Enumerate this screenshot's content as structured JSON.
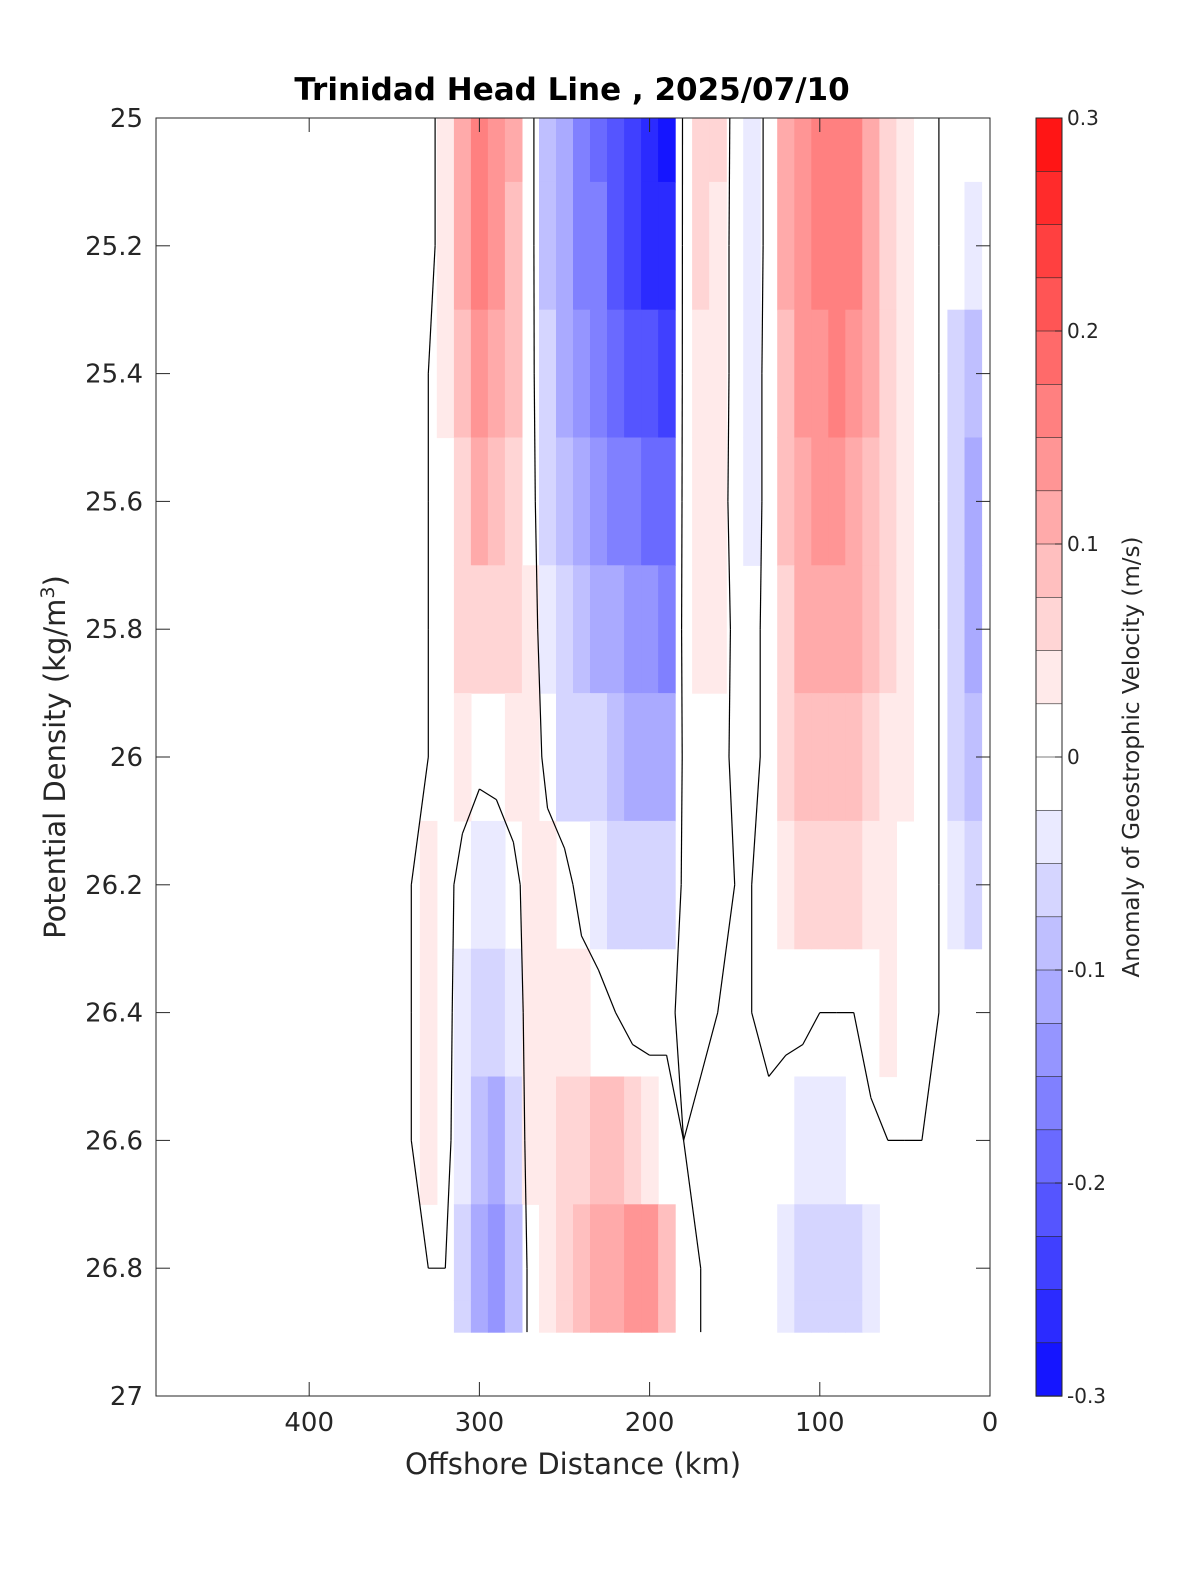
{
  "chart_data": {
    "type": "heatmap",
    "subtype": "filled-contour section",
    "title": "Trinidad Head Line , 2025/07/10",
    "xlabel": "Offshore Distance (km)",
    "ylabel": "Potential Density (kg/m",
    "ylabel_sup": "3",
    "ylabel_close": ")",
    "xlim": [
      490,
      0
    ],
    "x_reversed": true,
    "ylim": [
      25,
      27
    ],
    "y_reversed": true,
    "xticks": [
      400,
      300,
      200,
      100,
      0
    ],
    "xtick_labels": [
      "400",
      "300",
      "200",
      "100",
      "0"
    ],
    "yticks": [
      25,
      25.2,
      25.4,
      25.6,
      25.8,
      26,
      26.2,
      26.4,
      26.6,
      26.8,
      27
    ],
    "ytick_labels": [
      "25",
      "25.2",
      "25.4",
      "25.6",
      "25.8",
      "26",
      "26.2",
      "26.4",
      "26.6",
      "26.8",
      "27"
    ],
    "colorbar": {
      "label": "Anomaly of Geostrophic Velocity (m/s)",
      "range": [
        -0.3,
        0.3
      ],
      "level_step": 0.025,
      "ticks": [
        0.3,
        0.2,
        0.1,
        0,
        -0.1,
        -0.2,
        -0.3
      ],
      "tick_labels": [
        "0.3",
        "0.2",
        "0.1",
        "0",
        "-0.1",
        "-0.2",
        "-0.3"
      ],
      "positive_color": "#ff0000",
      "negative_color": "#0000ff",
      "zero_color": "#ffffff"
    },
    "grid": false,
    "zero_contour_color": "#000000",
    "velocity_field": {
      "description_units": "m/s, x in km offshore, y in potential density",
      "x": [
        480,
        460,
        440,
        420,
        400,
        380,
        360,
        350,
        340,
        330,
        320,
        310,
        300,
        290,
        280,
        270,
        260,
        250,
        240,
        230,
        220,
        210,
        200,
        190,
        180,
        170,
        160,
        150,
        140,
        130,
        120,
        110,
        100,
        90,
        80,
        70,
        60,
        50,
        40,
        30,
        20,
        10
      ],
      "y": [
        25.0,
        25.2,
        25.4,
        25.6,
        25.8,
        26.0,
        26.2,
        26.4,
        26.6,
        26.8,
        26.9
      ],
      "values": [
        [
          0,
          0,
          0,
          0,
          0,
          0,
          0,
          0,
          0,
          -0.02,
          0.03,
          0.12,
          0.17,
          0.14,
          0.1,
          0.02,
          -0.08,
          -0.12,
          -0.15,
          -0.18,
          -0.21,
          -0.24,
          -0.26,
          -0.28,
          0.02,
          0.06,
          0.05,
          -0.02,
          -0.04,
          0.02,
          0.1,
          0.14,
          0.15,
          0.16,
          0.15,
          0.1,
          0.06,
          0.03,
          0.02,
          0,
          0,
          0
        ],
        [
          0,
          0,
          0,
          0,
          0,
          0,
          0,
          0,
          0,
          -0.02,
          0.03,
          0.11,
          0.15,
          0.13,
          0.09,
          0.02,
          -0.08,
          -0.12,
          -0.15,
          -0.17,
          -0.2,
          -0.23,
          -0.25,
          -0.25,
          0.02,
          0.05,
          0.04,
          -0.02,
          -0.04,
          0.02,
          0.1,
          0.14,
          0.15,
          0.16,
          0.15,
          0.11,
          0.07,
          0.04,
          0.02,
          0,
          -0.02,
          -0.03
        ],
        [
          0,
          0,
          0,
          0,
          0,
          0,
          0,
          0,
          0,
          0,
          0.03,
          0.09,
          0.13,
          0.11,
          0.08,
          0.02,
          -0.07,
          -0.11,
          -0.13,
          -0.15,
          -0.18,
          -0.2,
          -0.22,
          -0.23,
          0.02,
          0.04,
          0.04,
          -0.02,
          -0.03,
          0.02,
          0.09,
          0.13,
          0.14,
          0.15,
          0.14,
          0.11,
          0.07,
          0.04,
          0.02,
          0,
          -0.06,
          -0.08
        ],
        [
          0,
          0,
          0,
          0,
          0,
          0,
          0,
          0,
          0,
          0,
          0.02,
          0.07,
          0.1,
          0.09,
          0.06,
          0.02,
          -0.05,
          -0.09,
          -0.11,
          -0.13,
          -0.15,
          -0.17,
          -0.18,
          -0.19,
          0.02,
          0.04,
          0.03,
          -0.02,
          -0.03,
          0.02,
          0.08,
          0.12,
          0.13,
          0.13,
          0.12,
          0.09,
          0.06,
          0.03,
          0.02,
          0,
          -0.07,
          -0.1
        ],
        [
          0,
          0,
          0,
          0,
          0,
          0,
          0,
          0,
          0,
          0,
          0.02,
          0.05,
          0.07,
          0.06,
          0.05,
          0.03,
          -0.04,
          -0.07,
          -0.09,
          -0.1,
          -0.12,
          -0.13,
          -0.14,
          -0.15,
          0.02,
          0.03,
          0.03,
          -0.01,
          -0.02,
          0.02,
          0.07,
          0.1,
          0.11,
          0.11,
          0.1,
          0.08,
          0.05,
          0.03,
          0.02,
          0,
          -0.07,
          -0.1
        ],
        [
          0,
          0,
          0,
          0,
          0,
          0,
          0,
          0,
          0,
          0,
          0.02,
          0.03,
          0.01,
          0.02,
          0.04,
          0.04,
          -0.02,
          -0.05,
          -0.06,
          -0.07,
          -0.09,
          -0.1,
          -0.11,
          -0.11,
          0.01,
          0.02,
          0.02,
          -0.01,
          -0.02,
          0.02,
          0.05,
          0.08,
          0.09,
          0.09,
          0.08,
          0.06,
          0.04,
          0.03,
          0.02,
          0,
          -0.06,
          -0.09
        ],
        [
          0,
          0,
          0,
          0,
          0,
          0,
          0,
          0,
          0,
          0.03,
          0.02,
          -0.02,
          -0.03,
          -0.04,
          -0.02,
          0.03,
          0.03,
          0.02,
          -0.02,
          -0.04,
          -0.05,
          -0.06,
          -0.07,
          -0.06,
          0.01,
          0.02,
          0.01,
          0,
          0,
          0.02,
          0.03,
          0.05,
          0.05,
          0.05,
          0.05,
          0.04,
          0.03,
          0.02,
          0.01,
          0,
          -0.03,
          -0.06
        ],
        [
          0,
          0,
          0,
          0,
          0,
          0,
          0,
          0,
          0,
          0.03,
          0.02,
          -0.03,
          -0.06,
          -0.07,
          -0.04,
          0.03,
          0.04,
          0.04,
          0.03,
          0.02,
          0,
          -0.02,
          -0.02,
          -0.01,
          0.01,
          0.01,
          0,
          0,
          0,
          0.01,
          0.01,
          0.01,
          0,
          0,
          0,
          0.02,
          0.03,
          0.02,
          0.01,
          0,
          0,
          0
        ],
        [
          0,
          0,
          0,
          0,
          0,
          0,
          0,
          0,
          0,
          0.03,
          0.02,
          -0.04,
          -0.09,
          -0.11,
          -0.06,
          0.03,
          0.04,
          0.05,
          0.07,
          0.08,
          0.08,
          0.06,
          0.04,
          0.02,
          0,
          -0.01,
          0,
          0,
          0,
          -0.01,
          -0.02,
          -0.03,
          -0.03,
          -0.03,
          -0.02,
          -0.01,
          0,
          0,
          0,
          0,
          0,
          0
        ],
        [
          0,
          0,
          0,
          0,
          0,
          0,
          0,
          0,
          0,
          0,
          0,
          -0.05,
          -0.12,
          -0.14,
          -0.08,
          0.02,
          0.04,
          0.06,
          0.08,
          0.1,
          0.12,
          0.14,
          0.14,
          0.08,
          0.02,
          0,
          0,
          0,
          0,
          -0.01,
          -0.04,
          -0.06,
          -0.07,
          -0.06,
          -0.05,
          -0.03,
          -0.01,
          0,
          0,
          0,
          0,
          0
        ],
        [
          0,
          0,
          0,
          0,
          0,
          0,
          0,
          0,
          0,
          0,
          0,
          -0.05,
          -0.12,
          -0.14,
          -0.08,
          0.02,
          0.04,
          0.06,
          0.08,
          0.1,
          0.12,
          0.14,
          0.14,
          0.08,
          0.02,
          0,
          0,
          0,
          0,
          -0.01,
          -0.04,
          -0.06,
          -0.07,
          -0.06,
          -0.05,
          -0.03,
          -0.01,
          0,
          0,
          0,
          0,
          0
        ]
      ]
    }
  }
}
